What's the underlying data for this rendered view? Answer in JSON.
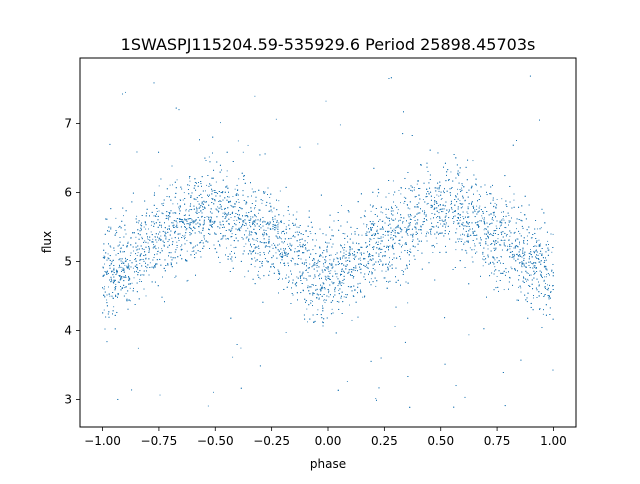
{
  "chart_data": {
    "type": "scatter",
    "title": "1SWASPJ115204.59-535929.6 Period 25898.45703s",
    "xlabel": "phase",
    "ylabel": "flux",
    "xlim": [
      -1.1,
      1.1
    ],
    "ylim": [
      2.6,
      7.95
    ],
    "xticks": [
      -1.0,
      -0.75,
      -0.5,
      -0.25,
      0.0,
      0.25,
      0.5,
      0.75,
      1.0
    ],
    "xtick_labels": [
      "−1.00",
      "−0.75",
      "−0.50",
      "−0.25",
      "0.00",
      "0.25",
      "0.50",
      "0.75",
      "1.00"
    ],
    "yticks": [
      3,
      4,
      5,
      6,
      7
    ],
    "ytick_labels": [
      "3",
      "4",
      "5",
      "6",
      "7"
    ],
    "grid": false,
    "marker_color": "#1f77b4",
    "series": [
      {
        "phase_range": [
          -1.0,
          1.0
        ],
        "trend": {
          "phase": [
            -1.0,
            -0.9,
            -0.75,
            -0.6,
            -0.5,
            -0.4,
            -0.25,
            -0.1,
            0.0,
            0.1,
            0.25,
            0.4,
            0.5,
            0.6,
            0.75,
            0.9,
            1.0
          ],
          "flux": [
            4.75,
            4.95,
            5.35,
            5.65,
            5.72,
            5.65,
            5.35,
            4.95,
            4.7,
            4.95,
            5.35,
            5.65,
            5.72,
            5.65,
            5.35,
            4.95,
            4.75
          ]
        },
        "scatter_spread": 0.33,
        "outlier_range": [
          2.8,
          7.7
        ]
      }
    ]
  }
}
